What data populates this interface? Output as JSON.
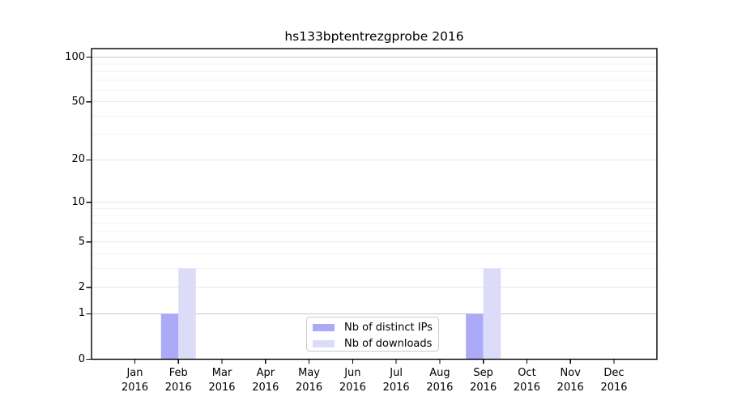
{
  "chart_data": {
    "type": "bar",
    "title": "hs133bptentrezgprobe 2016",
    "categories": [
      "Jan",
      "Feb",
      "Mar",
      "Apr",
      "May",
      "Jun",
      "Jul",
      "Aug",
      "Sep",
      "Oct",
      "Nov",
      "Dec"
    ],
    "category_year": "2016",
    "series": [
      {
        "name": "Nb of distinct IPs",
        "color": "#aaaaf6",
        "values": [
          0,
          1,
          0,
          0,
          0,
          0,
          0,
          0,
          1,
          0,
          0,
          0
        ]
      },
      {
        "name": "Nb of downloads",
        "color": "#dcdcf9",
        "values": [
          0,
          3,
          0,
          0,
          0,
          0,
          0,
          0,
          3,
          0,
          0,
          0
        ]
      }
    ],
    "y_axis": {
      "scale": "log1p",
      "major_ticks": [
        0,
        1,
        2,
        5,
        10,
        20,
        50,
        100
      ],
      "minor_gridlines": [
        3,
        4,
        6,
        7,
        8,
        9,
        30,
        40,
        60,
        70,
        80,
        90
      ],
      "ylim": [
        0,
        114
      ]
    },
    "x_axis": {
      "ticks_per_month": true
    },
    "legend": {
      "position": "lower center"
    },
    "grid": true,
    "colors": {
      "bar_distinct_ips": "#aaaaf6",
      "bar_downloads": "#dcdcf9",
      "grid_strong": "#c6c6ca",
      "grid_major": "#e7e7e9",
      "grid_minor": "#f3f3f3",
      "axis_line": "#000000",
      "legend_border": "#cbcbcb"
    }
  }
}
